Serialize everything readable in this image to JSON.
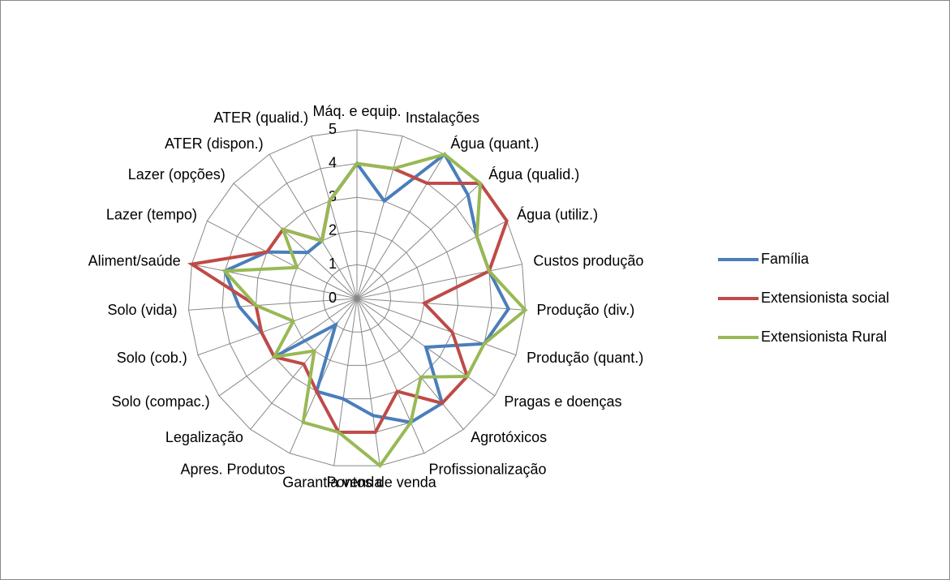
{
  "chart_data": {
    "type": "radar",
    "categories": [
      "Máq. e equip.",
      "Instalações",
      "Água (quant.)",
      "Água (qualid.)",
      "Água (utiliz.)",
      "Custos  produção",
      "Produção (div.)",
      "Produção (quant.)",
      "Pragas e doenças",
      "Agrotóxicos",
      "Profissionalização",
      "Pontos de venda",
      "Garantia venda",
      "Apres. Produtos",
      "Legalização",
      "Solo (compac.)",
      "Solo (cob.)",
      "Solo (vida)",
      "Aliment/saúde",
      "Lazer (tempo)",
      "Lazer (opções)",
      "ATER (dispon.)",
      "ATER (qualid.)"
    ],
    "series": [
      {
        "name": "Família",
        "color": "#4a7ebb",
        "values": [
          4,
          3,
          5,
          4.5,
          4,
          4,
          4.5,
          4,
          2.5,
          4,
          4,
          3.5,
          3,
          3,
          1,
          3,
          3,
          3.5,
          4,
          3,
          2,
          2,
          3
        ]
      },
      {
        "name": "Extensionista social",
        "color": "#be4b48",
        "values": [
          4,
          4,
          4,
          5,
          5,
          4,
          2,
          3,
          4,
          4,
          3,
          4,
          4,
          3,
          2.5,
          3,
          3,
          3,
          5,
          3,
          3,
          2,
          3
        ]
      },
      {
        "name": "Extensionista Rural",
        "color": "#98b954",
        "values": [
          4,
          4,
          5,
          5,
          4,
          4,
          5,
          4,
          4,
          3,
          4,
          5,
          4,
          4,
          2,
          3,
          2,
          3,
          4,
          2,
          3,
          2,
          3
        ]
      }
    ],
    "rlim": [
      0,
      5
    ],
    "rticks": [
      0,
      1,
      2,
      3,
      4,
      5
    ],
    "legend": "right"
  }
}
